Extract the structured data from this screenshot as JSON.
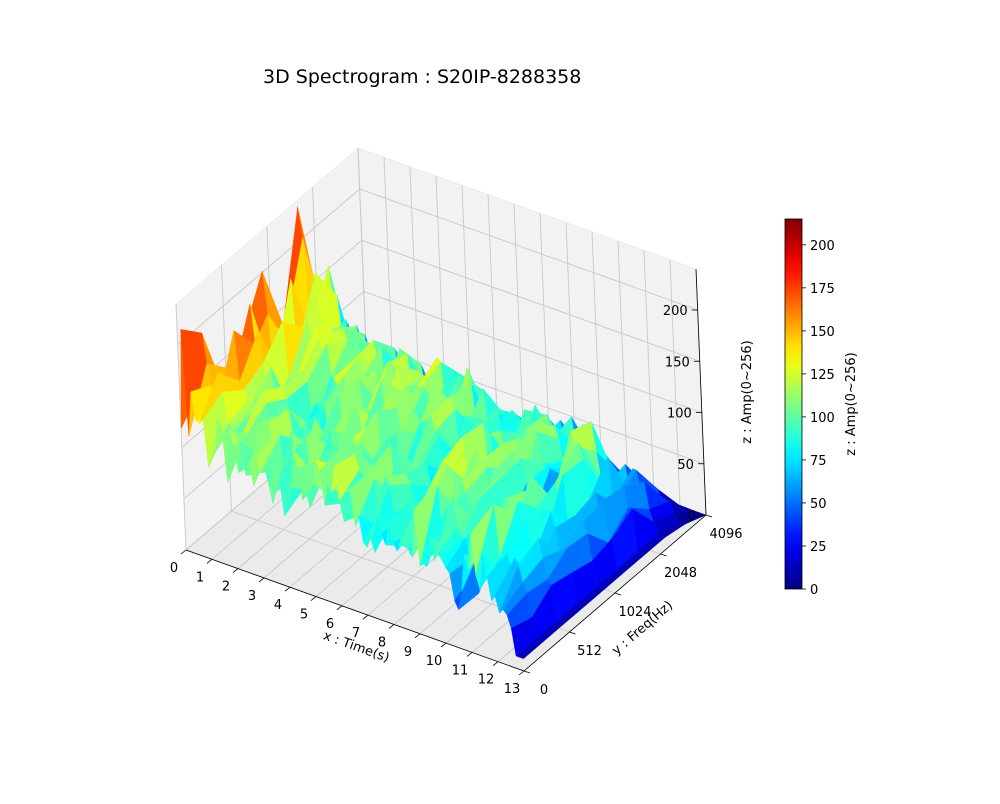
{
  "chart_data": {
    "type": "surface-3d",
    "title": "3D Spectrogram : S20IP-8288358",
    "xlabel": "x : Time(s)",
    "ylabel": "y : Freq(Hz)",
    "zlabel": "z : Amp(0~256)",
    "x_ticks": [
      "0",
      "1",
      "2",
      "3",
      "4",
      "5",
      "6",
      "7",
      "8",
      "9",
      "10",
      "11",
      "12",
      "13"
    ],
    "y_ticks": [
      "0",
      "512",
      "1024",
      "2048",
      "4096"
    ],
    "z_ticks": [
      "0",
      "50",
      "100",
      "150",
      "200"
    ],
    "zlim": [
      0,
      240
    ],
    "colormap": "jet",
    "colorbar": {
      "label": "z : Amp(0~256)",
      "range": [
        0,
        215
      ],
      "ticks": [
        "0",
        "25",
        "50",
        "75",
        "100",
        "125",
        "150",
        "175",
        "200"
      ]
    },
    "grid": true,
    "approx_amplitude_profile": {
      "time_s": [
        0,
        0.5,
        1,
        2,
        3,
        4,
        5,
        5.5,
        6,
        7,
        8,
        8.5,
        9,
        10,
        10.5,
        11,
        12,
        13
      ],
      "peak_amp": [
        215,
        180,
        140,
        120,
        120,
        125,
        130,
        115,
        130,
        110,
        95,
        125,
        120,
        110,
        60,
        130,
        90,
        20
      ]
    }
  }
}
